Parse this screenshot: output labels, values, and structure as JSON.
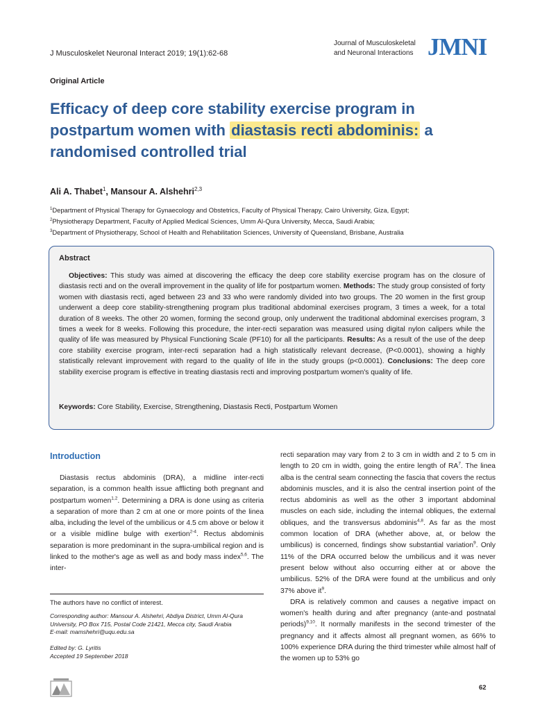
{
  "header": {
    "citation": "J Musculoskelet Neuronal Interact 2019; 19(1):62-68",
    "journal_name_line1": "Journal of Musculoskeletal",
    "journal_name_line2": "and Neuronal Interactions",
    "journal_logo": "JMNI"
  },
  "article_type": "Original Article",
  "title": {
    "part1": "Efficacy of deep core stability exercise program in postpartum women with ",
    "highlighted": "diastasis recti abdominis:",
    "part2": " a randomised controlled trial",
    "highlight_color": "#fbe98e"
  },
  "authors": {
    "author1": "Ali A. Thabet",
    "author1_sup": "1",
    "separator": ", ",
    "author2": "Mansour A. Alshehri",
    "author2_sup": "2,3"
  },
  "affiliations": [
    {
      "sup": "1",
      "text": "Department of Physical Therapy for Gynaecology and Obstetrics, Faculty of Physical Therapy, Cairo University, Giza, Egypt;"
    },
    {
      "sup": "2",
      "text": "Physiotherapy Department, Faculty of Applied Medical Sciences, Umm Al-Qura University, Mecca, Saudi Arabia;"
    },
    {
      "sup": "3",
      "text": "Department of Physiotherapy, School of Health and Rehabilitation Sciences, University of Queensland, Brisbane, Australia"
    }
  ],
  "abstract": {
    "heading": "Abstract",
    "objectives_label": "Objectives:",
    "objectives": " This study was aimed at discovering the efficacy the deep core stability exercise program has on the closure of diastasis recti and on the overall improvement in the quality of life for postpartum women. ",
    "methods_label": "Methods:",
    "methods": " The study group consisted of forty women with diastasis recti, aged between 23 and 33 who were randomly divided into two groups. The 20 women in the first group underwent a deep core stability-strengthening program plus traditional abdominal exercises program, 3 times a week, for a total duration of 8 weeks. The other 20 women, forming the second group, only underwent the traditional abdominal exercises program, 3 times a week for 8 weeks. Following this procedure, the inter-recti separation was measured using digital nylon calipers while the quality of life was measured by Physical Functioning Scale (PF10) for all the participants. ",
    "results_label": "Results:",
    "results": " As a result of the use of the deep core stability exercise program, inter-recti separation had a high statistically relevant decrease, (P<0.0001), showing a highly statistically relevant improvement with regard to the quality of life in the study groups (p<0.0001). ",
    "conclusions_label": "Conclusions:",
    "conclusions": " The deep core stability exercise program is effective in treating diastasis recti and improving postpartum women's quality of life.",
    "keywords_label": "Keywords:",
    "keywords": " Core Stability, Exercise, Strengthening, Diastasis Recti, Postpartum Women",
    "border_color": "#3a5f9c",
    "background_color": "#f2f2f2"
  },
  "introduction": {
    "heading": "Introduction",
    "heading_color": "#2e6db4",
    "left": {
      "t1": "Diastasis rectus abdominis (DRA), a midline inter-recti separation, is a common health issue afflicting both pregnant and postpartum women",
      "r1": "1,2",
      "t2": ". Determining a DRA is done using as criteria a separation of more than 2 cm at one or more points of the linea alba, including the level of the umbilicus or 4.5 cm above or below it or a visible midline bulge with exertion",
      "r2": "2-4",
      "t3": ". Rectus abdominis separation is more predominant in the supra-umbilical region and is linked to the mother's age as well as and body mass index",
      "r3": "5,6",
      "t4": ". The inter-"
    },
    "right_p1": {
      "t1": "recti separation may vary from 2 to 3 cm in width and 2 to 5 cm in length to 20 cm in width, going the entire length of RA",
      "r1": "7",
      "t2": ". The linea alba is the central seam connecting the fascia that covers the rectus abdominis muscles, and it is also the central insertion point of the rectus abdominis as well as the other 3 important abdominal muscles on each side, including the internal obliques, the external obliques, and the transversus abdominis",
      "r2": "4,8",
      "t3": ". As far as the most common location of DRA (whether above, at, or below the umbilicus) is concerned, findings show substantial variation",
      "r3": "9",
      "t4": ". Only 11% of the DRA occurred below the umbilicus and it was never present below without also occurring either at or above the umbilicus. 52% of the DRA were found at the umbilicus and only 37% above it",
      "r4": "9",
      "t5": "."
    },
    "right_p2": {
      "t1": "DRA is relatively common and causes a negative impact on women's health during and after pregnancy (ante-and postnatal periods)",
      "r1": "9,10",
      "t2": ". It normally manifests in the second trimester of the pregnancy and it affects almost all pregnant women, as 66% to 100% experience DRA during the third trimester while almost half of the women up to 53% go"
    }
  },
  "footnotes": {
    "conflict": "The authors have no conflict of interest.",
    "corresponding_line1": "Corresponding author: Mansour A. Alshehri, Abdiya District, Umm Al-Qura",
    "corresponding_line2": "University, PO Box 715, Postal Code 21421, Mecca city, Saudi Arabia",
    "corresponding_line3": "E-mail: mamshehri@uqu.edu.sa",
    "edited": "Edited by: G. Lyritis",
    "accepted": "Accepted 19 September 2018"
  },
  "publisher_logo_icon": "publisher-logo-icon",
  "page_number": "62",
  "colors": {
    "title": "#2e5b95",
    "logo": "#2f6fb6"
  }
}
